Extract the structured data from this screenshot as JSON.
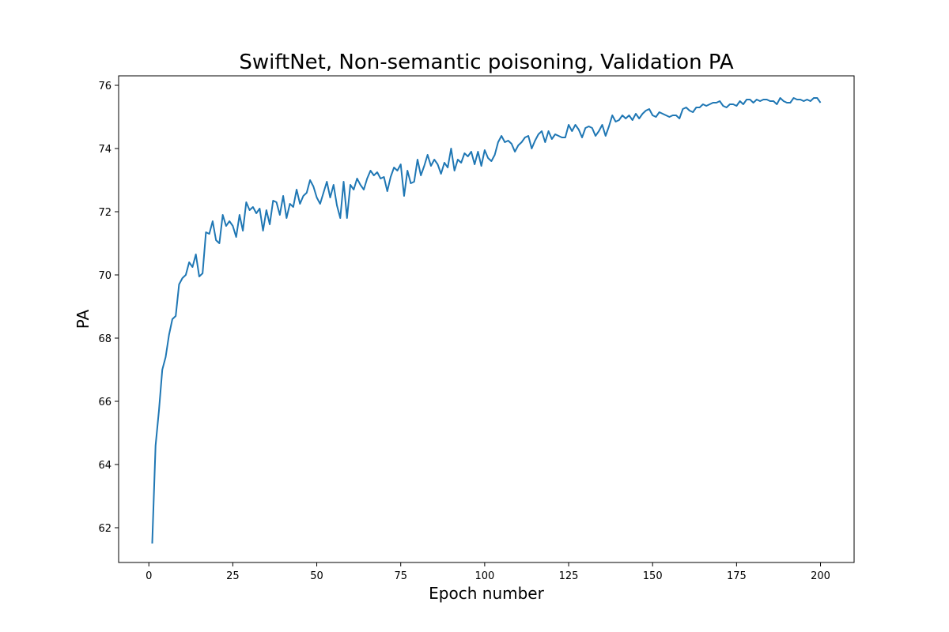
{
  "chart_data": {
    "type": "line",
    "title": "SwiftNet, Non-semantic poisoning, Validation PA",
    "xlabel": "Epoch number",
    "ylabel": "PA",
    "xlim": [
      -9,
      210
    ],
    "ylim": [
      60.9,
      76.3
    ],
    "xticks": [
      0,
      25,
      50,
      75,
      100,
      125,
      150,
      175,
      200
    ],
    "yticks": [
      62,
      64,
      66,
      68,
      70,
      72,
      74,
      76
    ],
    "grid": false,
    "colors": {
      "line": "#1f77b4"
    },
    "series": [
      {
        "x": [
          1,
          2,
          3,
          4,
          5,
          6,
          7,
          8,
          9,
          10,
          11,
          12,
          13,
          14,
          15,
          16,
          17,
          18,
          19,
          20,
          21,
          22,
          23,
          24,
          25,
          26,
          27,
          28,
          29,
          30,
          31,
          32,
          33,
          34,
          35,
          36,
          37,
          38,
          39,
          40,
          41,
          42,
          43,
          44,
          45,
          46,
          47,
          48,
          49,
          50,
          51,
          52,
          53,
          54,
          55,
          56,
          57,
          58,
          59,
          60,
          61,
          62,
          63,
          64,
          65,
          66,
          67,
          68,
          69,
          70,
          71,
          72,
          73,
          74,
          75,
          76,
          77,
          78,
          79,
          80,
          81,
          82,
          83,
          84,
          85,
          86,
          87,
          88,
          89,
          90,
          91,
          92,
          93,
          94,
          95,
          96,
          97,
          98,
          99,
          100,
          101,
          102,
          103,
          104,
          105,
          106,
          107,
          108,
          109,
          110,
          111,
          112,
          113,
          114,
          115,
          116,
          117,
          118,
          119,
          120,
          121,
          122,
          123,
          124,
          125,
          126,
          127,
          128,
          129,
          130,
          131,
          132,
          133,
          134,
          135,
          136,
          137,
          138,
          139,
          140,
          141,
          142,
          143,
          144,
          145,
          146,
          147,
          148,
          149,
          150,
          151,
          152,
          153,
          154,
          155,
          156,
          157,
          158,
          159,
          160,
          161,
          162,
          163,
          164,
          165,
          166,
          167,
          168,
          169,
          170,
          171,
          172,
          173,
          174,
          175,
          176,
          177,
          178,
          179,
          180,
          181,
          182,
          183,
          184,
          185,
          186,
          187,
          188,
          189,
          190,
          191,
          192,
          193,
          194,
          195,
          196,
          197,
          198,
          199,
          200
        ],
        "y": [
          61.5,
          64.6,
          65.7,
          67.0,
          67.4,
          68.1,
          68.6,
          68.7,
          69.7,
          69.9,
          70.0,
          70.4,
          70.25,
          70.65,
          69.95,
          70.05,
          71.35,
          71.3,
          71.7,
          71.1,
          71.0,
          71.9,
          71.55,
          71.7,
          71.55,
          71.2,
          71.9,
          71.4,
          72.3,
          72.05,
          72.15,
          71.95,
          72.1,
          71.4,
          72.05,
          71.6,
          72.35,
          72.3,
          71.9,
          72.5,
          71.8,
          72.25,
          72.15,
          72.7,
          72.25,
          72.5,
          72.6,
          73.0,
          72.8,
          72.45,
          72.25,
          72.6,
          72.95,
          72.45,
          72.85,
          72.2,
          71.8,
          72.95,
          71.8,
          72.85,
          72.7,
          73.05,
          72.85,
          72.7,
          73.05,
          73.3,
          73.15,
          73.25,
          73.05,
          73.1,
          72.65,
          73.1,
          73.4,
          73.3,
          73.5,
          72.5,
          73.3,
          72.9,
          72.95,
          73.65,
          73.15,
          73.45,
          73.8,
          73.45,
          73.65,
          73.5,
          73.2,
          73.55,
          73.4,
          74.0,
          73.3,
          73.65,
          73.55,
          73.85,
          73.75,
          73.9,
          73.5,
          73.9,
          73.45,
          73.95,
          73.7,
          73.6,
          73.8,
          74.2,
          74.4,
          74.2,
          74.25,
          74.15,
          73.9,
          74.1,
          74.2,
          74.35,
          74.4,
          74.0,
          74.25,
          74.45,
          74.55,
          74.2,
          74.55,
          74.3,
          74.45,
          74.4,
          74.35,
          74.35,
          74.75,
          74.55,
          74.75,
          74.6,
          74.35,
          74.65,
          74.7,
          74.65,
          74.4,
          74.55,
          74.75,
          74.4,
          74.7,
          75.05,
          74.85,
          74.9,
          75.05,
          74.95,
          75.05,
          74.9,
          75.1,
          74.95,
          75.1,
          75.2,
          75.25,
          75.05,
          75.0,
          75.15,
          75.1,
          75.05,
          75.0,
          75.05,
          75.05,
          74.95,
          75.25,
          75.3,
          75.2,
          75.15,
          75.3,
          75.3,
          75.4,
          75.35,
          75.4,
          75.45,
          75.45,
          75.5,
          75.35,
          75.3,
          75.4,
          75.4,
          75.35,
          75.5,
          75.4,
          75.55,
          75.55,
          75.45,
          75.55,
          75.5,
          75.55,
          75.55,
          75.5,
          75.5,
          75.4,
          75.6,
          75.5,
          75.45,
          75.45,
          75.6,
          75.55,
          75.55,
          75.5,
          75.55,
          75.5,
          75.6,
          75.6,
          75.45
        ]
      }
    ]
  }
}
